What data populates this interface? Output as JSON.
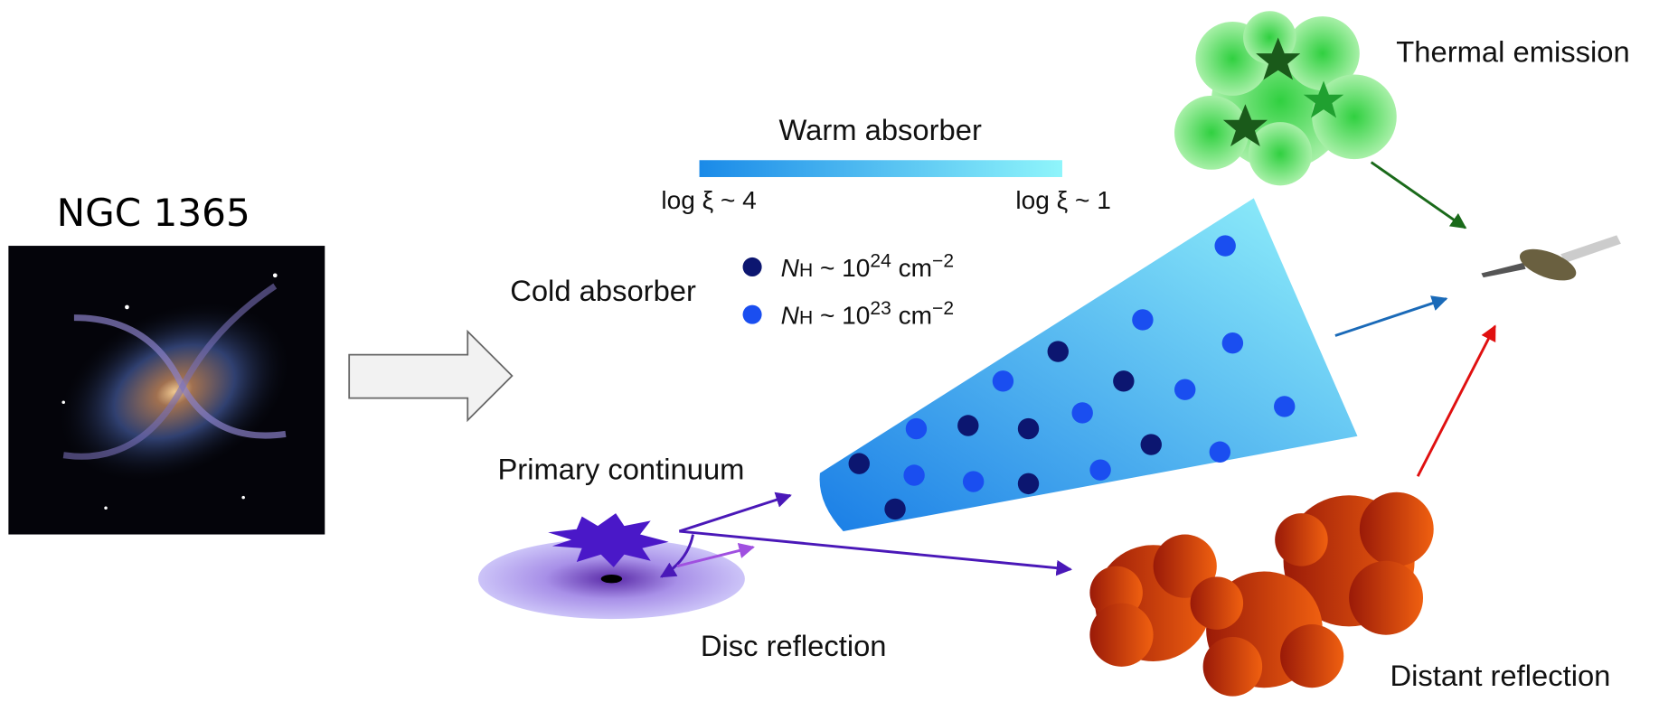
{
  "title": "NGC 1365",
  "warm_absorber": {
    "label": "Warm absorber",
    "low": "log ξ  ~ 4",
    "high": "log ξ  ~ 1"
  },
  "cold_absorber": {
    "label": "Cold absorber",
    "legend": [
      {
        "symbol": "N",
        "subscript": "H",
        "base": " ~ 10",
        "exponent": "24",
        "unit": " cm",
        "unit_exponent": "−2"
      },
      {
        "symbol": "N",
        "subscript": "H",
        "base": " ~ 10",
        "exponent": "23",
        "unit": " cm",
        "unit_exponent": "−2"
      }
    ]
  },
  "components": {
    "primary": "Primary continuum",
    "disc": "Disc reflection",
    "thermal": "Thermal emission",
    "distant": "Distant reflection"
  }
}
